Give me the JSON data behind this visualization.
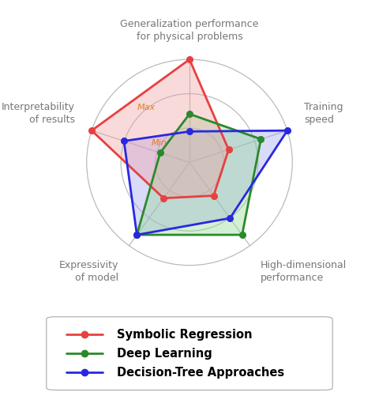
{
  "categories": [
    "Generalization performance\nfor physical problems",
    "Training\nspeed",
    "High-dimensional\nperformance",
    "Expressivity\nof model",
    "Interpretability\nof results"
  ],
  "series": [
    {
      "label": "Symbolic Regression",
      "color": "#e84040",
      "fill_color": "#f0a0a0",
      "values": [
        1.0,
        0.4,
        0.4,
        0.43,
        1.0
      ]
    },
    {
      "label": "Deep Learning",
      "color": "#2a8a2a",
      "fill_color": "#90d890",
      "values": [
        0.47,
        0.73,
        0.87,
        0.87,
        0.3
      ]
    },
    {
      "label": "Decision-Tree Approaches",
      "color": "#2828e0",
      "fill_color": "#a0a0f0",
      "values": [
        0.3,
        1.0,
        0.67,
        0.87,
        0.67
      ]
    }
  ],
  "n_rings": 3,
  "min_label": "Min",
  "max_label": "Max",
  "label_color": "#e08020",
  "grid_color": "#bbbbbb",
  "bg_color": "#ffffff",
  "legend_fontsize": 10.5,
  "label_fontsize": 9.0,
  "label_color_text": "#777777"
}
